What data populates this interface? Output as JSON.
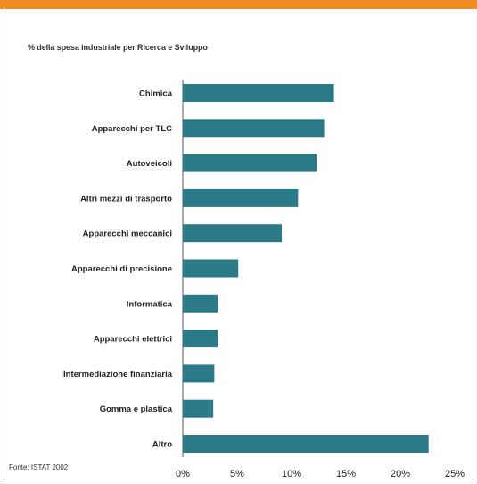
{
  "colors": {
    "accent_bar": "#f08a24",
    "bar": "#2b7a87",
    "frame": "#9a9a9a"
  },
  "header": {
    "title": "% della spesa industriale per Ricerca e Sviluppo"
  },
  "footer": {
    "source": "Fonte: ISTAT 2002"
  },
  "chart_data": {
    "type": "bar",
    "orientation": "horizontal",
    "title": "% della spesa industriale per Ricerca e Sviluppo",
    "categories": [
      "Chimica",
      "Apparecchi per TLC",
      "Autoveicoli",
      "Altri mezzi di trasporto",
      "Apparecchi meccanici",
      "Apparecchi di precisione",
      "Informatica",
      "Apparecchi elettrici",
      "Intermediazione finanziaria",
      "Gomma e plastica",
      "Altro"
    ],
    "values": [
      13.9,
      13.0,
      12.3,
      10.6,
      9.1,
      5.1,
      3.2,
      3.2,
      2.9,
      2.8,
      22.6
    ],
    "xlim": [
      0,
      25
    ],
    "xticks": [
      "0%",
      "5%",
      "10%",
      "15%",
      "20%",
      "25%"
    ],
    "grid": false,
    "legend": "none"
  }
}
